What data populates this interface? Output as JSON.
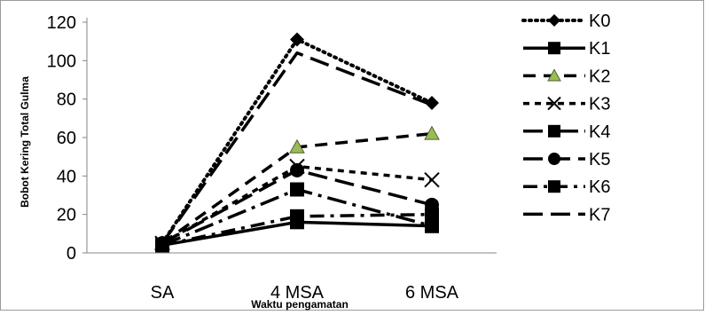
{
  "chart_data": {
    "type": "line",
    "title": "",
    "xlabel": "Waktu pengamatan",
    "ylabel": "Bobot Kering Total Gulma",
    "categories": [
      "SA",
      "4 MSA",
      "6 MSA"
    ],
    "ylim": [
      0,
      120
    ],
    "yticks": [
      "0",
      "20",
      "40",
      "60",
      "80",
      "100",
      "120"
    ],
    "grid": false,
    "legend_position": "right",
    "series": [
      {
        "name": "K0",
        "values": [
          5,
          111,
          78
        ],
        "dash": "dotted",
        "marker": "diamond"
      },
      {
        "name": "K1",
        "values": [
          4,
          16,
          14
        ],
        "dash": "solid",
        "marker": "square"
      },
      {
        "name": "K2",
        "values": [
          5,
          55,
          62
        ],
        "dash": "dashed",
        "marker": "triangle"
      },
      {
        "name": "K3",
        "values": [
          5,
          45,
          38
        ],
        "dash": "short-dash",
        "marker": "x"
      },
      {
        "name": "K4",
        "values": [
          4,
          33,
          14
        ],
        "dash": "long-dash-dot",
        "marker": "square"
      },
      {
        "name": "K5",
        "values": [
          5,
          43,
          25
        ],
        "dash": "long-dash",
        "marker": "circle"
      },
      {
        "name": "K6",
        "values": [
          4,
          19,
          20
        ],
        "dash": "dash-dot",
        "marker": "square"
      },
      {
        "name": "K7",
        "values": [
          5,
          104,
          77
        ],
        "dash": "long-dash",
        "marker": "none"
      }
    ]
  }
}
